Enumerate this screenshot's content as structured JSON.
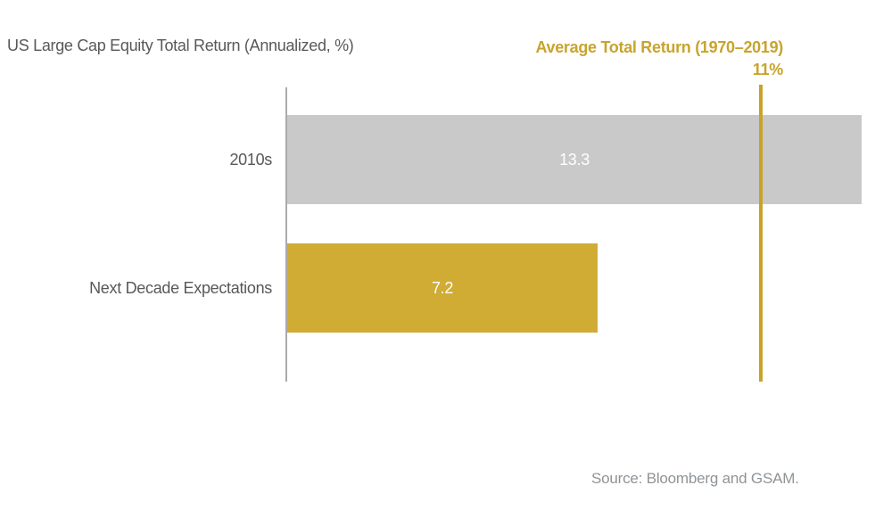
{
  "chart_data": {
    "type": "bar",
    "orientation": "horizontal",
    "title": "US Large Cap Equity Total Return (Annualized, %)",
    "categories": [
      "2010s",
      "Next Decade Expectations"
    ],
    "values": [
      13.3,
      7.2
    ],
    "value_labels": [
      "13.3",
      "7.2"
    ],
    "series_colors": [
      "#C9C9C9",
      "#D0AC35"
    ],
    "value_label_color": "#FFFFFF",
    "reference_line": {
      "title": "Average Total Return (1970–2019)",
      "value": 11,
      "value_label": "11%",
      "color": "#C9A227"
    },
    "axis_range": [
      0,
      13.6
    ],
    "grid": false,
    "legend": false,
    "source": "Source: Bloomberg and GSAM.",
    "colors": {
      "accent_gold": "#C8A42D",
      "bar_gray": "#C9C9C9",
      "bar_gold": "#D0AC35",
      "axis_gray": "#ABABAB",
      "text_gray": "#58585A",
      "source_gray": "#8F9498"
    }
  }
}
